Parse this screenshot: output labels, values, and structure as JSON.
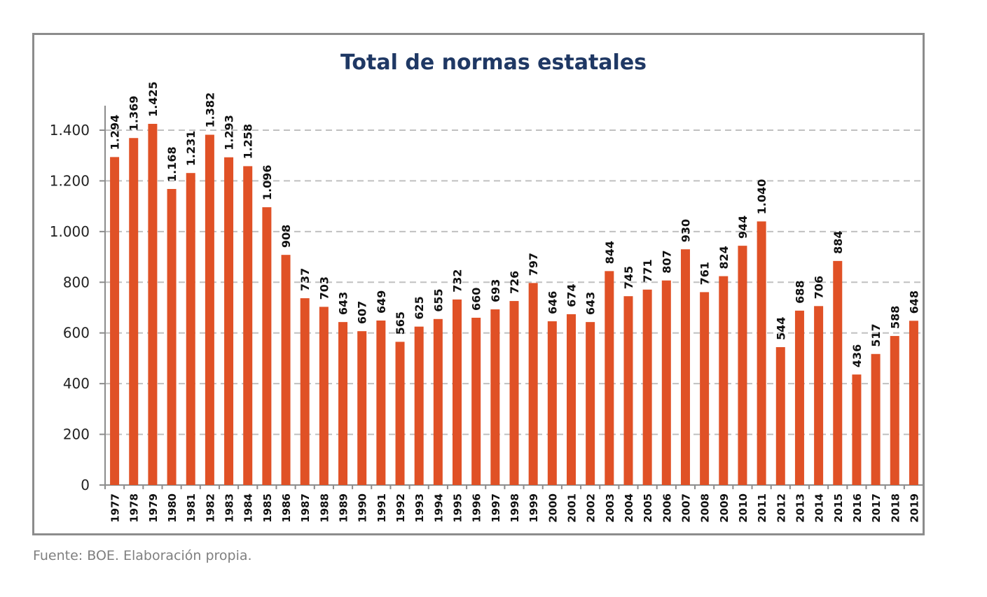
{
  "chart_data": {
    "type": "bar",
    "title": "Total de normas estatales",
    "xlabel": "",
    "ylabel": "",
    "ylim": [
      0,
      1500
    ],
    "yticks": [
      0,
      200,
      400,
      600,
      800,
      1000,
      1200,
      1400
    ],
    "ytick_labels": [
      "0",
      "200",
      "400",
      "600",
      "800",
      "1.000",
      "1.200",
      "1.400"
    ],
    "grid": "horizontal-dashed",
    "legend": "none",
    "bar_color": "#e05126",
    "title_color": "#1f3864",
    "categories": [
      "1977",
      "1978",
      "1979",
      "1980",
      "1981",
      "1982",
      "1983",
      "1984",
      "1985",
      "1986",
      "1987",
      "1988",
      "1989",
      "1990",
      "1991",
      "1992",
      "1993",
      "1994",
      "1995",
      "1996",
      "1997",
      "1998",
      "1999",
      "2000",
      "2001",
      "2002",
      "2003",
      "2004",
      "2005",
      "2006",
      "2007",
      "2008",
      "2009",
      "2010",
      "2011",
      "2012",
      "2013",
      "2014",
      "2015",
      "2016",
      "2017",
      "2018",
      "2019"
    ],
    "values": [
      1294,
      1369,
      1425,
      1168,
      1231,
      1382,
      1293,
      1258,
      1096,
      908,
      737,
      703,
      643,
      607,
      649,
      565,
      625,
      655,
      732,
      660,
      693,
      726,
      797,
      646,
      674,
      643,
      844,
      745,
      771,
      807,
      930,
      761,
      824,
      944,
      1040,
      544,
      688,
      706,
      884,
      436,
      517,
      588,
      648
    ],
    "value_labels": [
      "1.294",
      "1.369",
      "1.425",
      "1.168",
      "1.231",
      "1.382",
      "1.293",
      "1.258",
      "1.096",
      "908",
      "737",
      "703",
      "643",
      "607",
      "649",
      "565",
      "625",
      "655",
      "732",
      "660",
      "693",
      "726",
      "797",
      "646",
      "674",
      "643",
      "844",
      "745",
      "771",
      "807",
      "930",
      "761",
      "824",
      "944",
      "1.040",
      "544",
      "688",
      "706",
      "884",
      "436",
      "517",
      "588",
      "648"
    ]
  },
  "footer": {
    "source": "Fuente: BOE. Elaboración propia."
  }
}
